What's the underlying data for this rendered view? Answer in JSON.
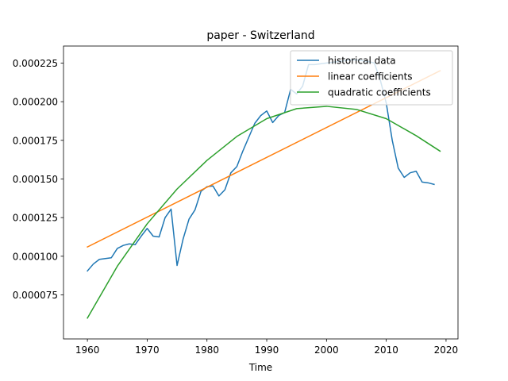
{
  "chart_data": {
    "type": "line",
    "title": "paper - Switzerland",
    "xlabel": "Time",
    "ylabel": "",
    "xlim": [
      1956,
      2022
    ],
    "ylim": [
      4.65e-05,
      0.000236
    ],
    "xticks": [
      1960,
      1970,
      1980,
      1990,
      2000,
      2010,
      2020
    ],
    "yticks": [
      7.5e-05,
      0.0001,
      0.000125,
      0.00015,
      0.000175,
      0.0002,
      0.000225
    ],
    "ytick_labels": [
      "0.000075",
      "0.000100",
      "0.000125",
      "0.000150",
      "0.000175",
      "0.000200",
      "0.000225"
    ],
    "grid": false,
    "legend_position": "top-right",
    "series": [
      {
        "name": "historical data",
        "color": "#1f77b4",
        "x": [
          1960,
          1961,
          1962,
          1963,
          1964,
          1965,
          1966,
          1967,
          1968,
          1969,
          1970,
          1971,
          1972,
          1973,
          1974,
          1975,
          1976,
          1977,
          1978,
          1979,
          1980,
          1981,
          1982,
          1983,
          1984,
          1985,
          1986,
          1987,
          1988,
          1989,
          1990,
          1991,
          1992,
          1993,
          1994,
          1995,
          1996,
          1997,
          1998,
          1999,
          2000,
          2001,
          2002,
          2003,
          2004,
          2005,
          2006,
          2007,
          2008,
          2009,
          2010,
          2011,
          2012,
          2013,
          2014,
          2015,
          2016,
          2017,
          2018
        ],
        "y": [
          9.05e-05,
          9.5e-05,
          9.8e-05,
          9.85e-05,
          9.9e-05,
          0.000105,
          0.000107,
          0.000108,
          0.0001075,
          0.000113,
          0.000118,
          0.000113,
          0.0001125,
          0.000125,
          0.0001305,
          9.4e-05,
          0.000111,
          0.000124,
          0.00013,
          0.000142,
          0.000145,
          0.0001455,
          0.000139,
          0.000143,
          0.000154,
          0.000158,
          0.000168,
          0.000177,
          0.000186,
          0.000191,
          0.000194,
          0.0001865,
          0.000191,
          0.000193,
          0.000208,
          0.000205,
          0.00021,
          0.000224,
          0.000224,
          0.0002245,
          0.000225,
          0.0002255,
          0.000226,
          0.0002265,
          0.000227,
          0.000227,
          0.0002265,
          0.000226,
          0.000225,
          0.000214,
          0.000199,
          0.000175,
          0.000157,
          0.000151,
          0.000154,
          0.000155,
          0.000148,
          0.0001475,
          0.0001465
        ]
      },
      {
        "name": "linear coefficients",
        "color": "#ff7f0e",
        "x": [
          1960,
          2019
        ],
        "y": [
          0.000106,
          0.00022
        ]
      },
      {
        "name": "quadratic coefficients",
        "color": "#2ca02c",
        "x": [
          1960,
          1965,
          1970,
          1975,
          1980,
          1985,
          1990,
          1995,
          2000,
          2005,
          2010,
          2015,
          2019
        ],
        "y": [
          6e-05,
          9.35e-05,
          0.000121,
          0.0001435,
          0.000162,
          0.0001775,
          0.000189,
          0.0001955,
          0.000197,
          0.000195,
          0.000189,
          0.000178,
          0.000168
        ]
      }
    ]
  }
}
